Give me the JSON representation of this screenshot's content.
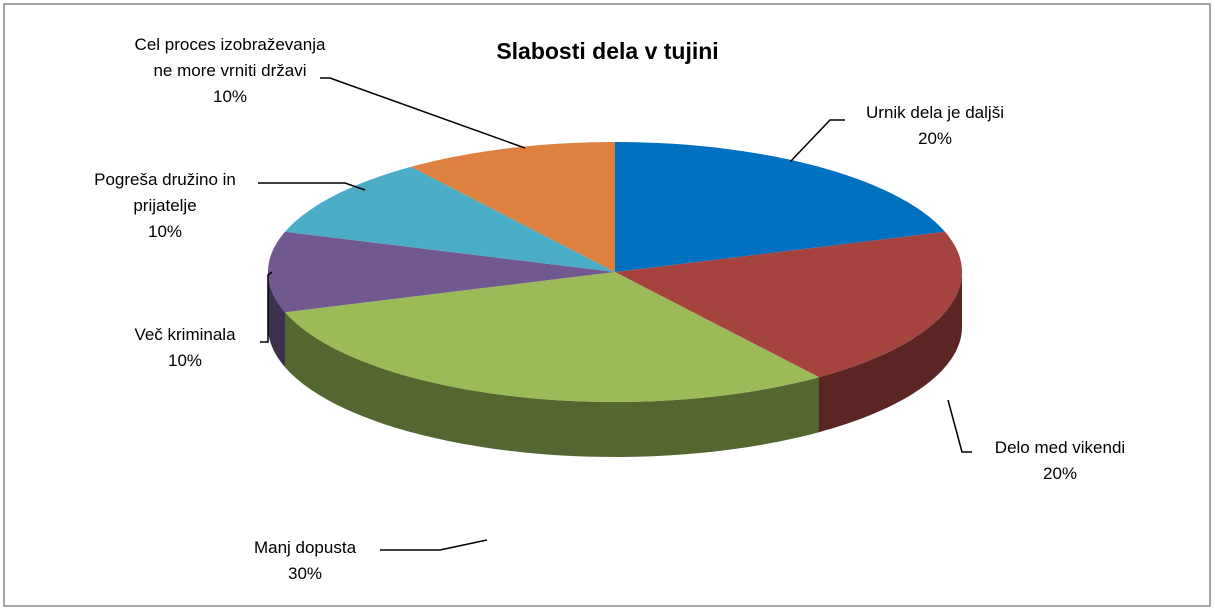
{
  "chart_data": {
    "type": "pie",
    "title": "Slabosti dela v tujini",
    "categories": [
      "Urnik dela je daljši",
      "Delo med vikendi",
      "Manj dopusta",
      "Več kriminala",
      "Pogreša družino in prijatelje",
      "Cel proces izobraževanja ne more vrniti državi"
    ],
    "values": [
      20,
      20,
      30,
      10,
      10,
      10
    ],
    "value_labels": [
      "20%",
      "20%",
      "30%",
      "10%",
      "10%",
      "10%"
    ],
    "colors": [
      "#0070c0",
      "#a5433f",
      "#9bbb59",
      "#71588f",
      "#4bacc6",
      "#dd8040"
    ]
  }
}
